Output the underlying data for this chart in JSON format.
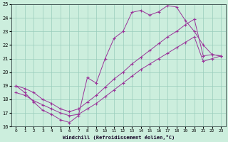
{
  "background_color": "#cceedd",
  "grid_color": "#99ccbb",
  "line_color": "#993399",
  "xlabel": "Windchill (Refroidissement éolien,°C)",
  "xlim": [
    -0.5,
    23.5
  ],
  "ylim": [
    16,
    25
  ],
  "yticks": [
    16,
    17,
    18,
    19,
    20,
    21,
    22,
    23,
    24,
    25
  ],
  "xticks": [
    0,
    1,
    2,
    3,
    4,
    5,
    6,
    7,
    8,
    9,
    10,
    11,
    12,
    13,
    14,
    15,
    16,
    17,
    18,
    19,
    20,
    21,
    22,
    23
  ],
  "curve1_x": [
    0,
    1,
    2,
    3,
    4,
    5,
    6,
    7,
    8,
    9,
    10,
    11,
    12,
    13,
    14,
    15,
    16,
    17,
    18,
    19,
    20,
    21,
    22,
    23
  ],
  "curve1_y": [
    19.0,
    18.5,
    17.8,
    17.2,
    16.9,
    16.5,
    16.3,
    16.8,
    19.6,
    19.2,
    21.0,
    22.5,
    23.0,
    24.4,
    24.55,
    24.2,
    24.45,
    24.9,
    24.8,
    23.8,
    23.0,
    22.0,
    21.3,
    21.2
  ],
  "curve2_x": [
    0,
    1,
    2,
    3,
    4,
    5,
    6,
    7,
    8,
    9,
    10,
    11,
    12,
    13,
    14,
    15,
    16,
    17,
    18,
    19,
    20,
    21,
    22,
    23
  ],
  "curve2_y": [
    19.0,
    18.8,
    18.5,
    18.0,
    17.7,
    17.3,
    17.1,
    17.3,
    17.8,
    18.3,
    18.9,
    19.5,
    20.0,
    20.6,
    21.1,
    21.6,
    22.1,
    22.6,
    23.0,
    23.5,
    23.9,
    21.2,
    21.3,
    21.2
  ],
  "curve3_x": [
    0,
    1,
    2,
    3,
    4,
    5,
    6,
    7,
    8,
    9,
    10,
    11,
    12,
    13,
    14,
    15,
    16,
    17,
    18,
    19,
    20,
    21,
    22,
    23
  ],
  "curve3_y": [
    18.5,
    18.3,
    17.9,
    17.6,
    17.3,
    17.0,
    16.8,
    16.9,
    17.3,
    17.7,
    18.2,
    18.7,
    19.2,
    19.7,
    20.2,
    20.6,
    21.0,
    21.4,
    21.8,
    22.2,
    22.6,
    20.8,
    21.0,
    21.2
  ]
}
